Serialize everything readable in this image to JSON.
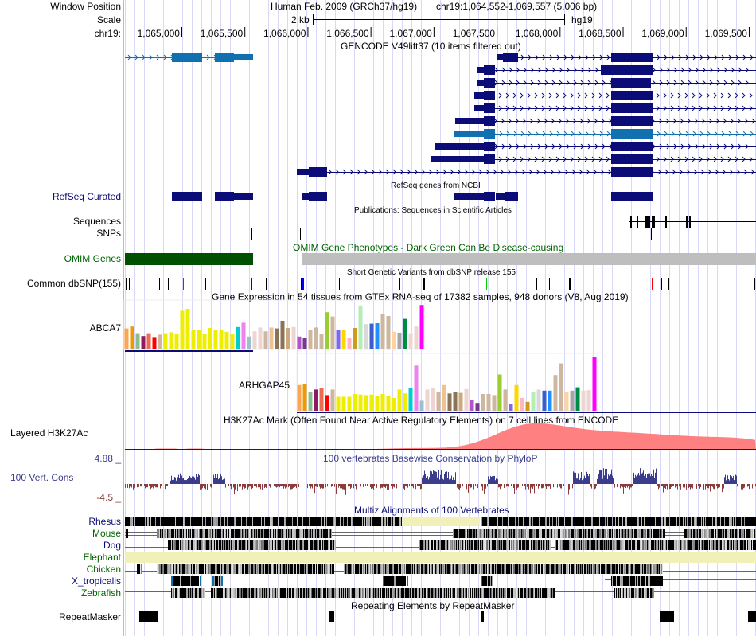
{
  "header": {
    "window_position_label": "Window Position",
    "scale_label": "Scale",
    "chrom_label": "chr19:",
    "assembly": "Human Feb. 2009 (GRCh37/hg19)",
    "position": "chr19:1,064,552-1,069,557 (5,006 bp)",
    "scale_value": "2 kb",
    "scale_db": "hg19",
    "ruler_ticks": [
      "1,065,000",
      "1,065,500",
      "1,066,000",
      "1,066,500",
      "1,067,000",
      "1,067,500",
      "1,068,000",
      "1,068,500",
      "1,069,000",
      "1,069,500"
    ]
  },
  "view": {
    "start": 1064552,
    "end": 1069557
  },
  "colors": {
    "gencode_navy": "#0c0c78",
    "gencode_blue": "#1070b0",
    "omim_green": "#005000",
    "omim_grey": "#bebebe",
    "cons_pos": "#3c3c8c",
    "cons_neg": "#8c3c3c",
    "h3k27ac": "#ff8080",
    "elephant": "#f0f0b8",
    "grid": "#d8d8f8",
    "gutter": "#f4a5a5"
  },
  "tracks": {
    "gencode": {
      "title": "GENCODE V49lift37 (10 items filtered out)",
      "items": [
        {
          "name": "ABCA7",
          "color": "blue",
          "row": 0
        },
        {
          "name": "ARHGAP45",
          "color": "navy",
          "row": 0
        },
        {
          "name": "ARHGAP45",
          "color": "navy",
          "row": 1
        },
        {
          "name": "ARHGAP45",
          "color": "navy",
          "row": 2
        },
        {
          "name": "ARHGAP45",
          "color": "navy",
          "row": 3
        },
        {
          "name": "ARHGAP45",
          "color": "navy",
          "row": 4
        },
        {
          "name": "ARHGAP45",
          "color": "navy",
          "row": 5
        },
        {
          "name": "ARHGAP45",
          "color": "blue",
          "row": 6
        },
        {
          "name": "ARHGAP45",
          "color": "navy",
          "row": 7
        },
        {
          "name": "ARHGAP45",
          "color": "navy",
          "row": 8
        },
        {
          "name": "ARHGAP45",
          "color": "navy",
          "row": 9
        }
      ]
    },
    "refseq": {
      "label": "RefSeq Curated",
      "title": "RefSeq genes from NCBI"
    },
    "publications": {
      "title": "Publications: Sequences in Scientific Articles",
      "label_sequences": "Sequences",
      "label_snps": "SNPs"
    },
    "omim": {
      "label": "OMIM Genes",
      "title": "OMIM Gene Phenotypes - Dark Green Can Be Disease-causing"
    },
    "dbsnp": {
      "label": "Common dbSNP(155)",
      "title": "Short Genetic Variants from dbSNP release 155"
    },
    "gtex": {
      "title": "Gene Expression in 54 tissues from GTEx RNA-seq of 17382 samples, 948 donors (V8, Aug 2019)",
      "genes": [
        {
          "name": "ABCA7",
          "values": [
            0.44,
            0.48,
            0.34,
            0.28,
            0.34,
            0.26,
            0.31,
            0.34,
            0.36,
            0.32,
            0.81,
            0.85,
            0.4,
            0.41,
            0.32,
            0.45,
            0.4,
            0.41,
            0.37,
            0.33,
            0.47,
            0.56,
            0.27,
            0.38,
            0.46,
            0.38,
            0.46,
            0.44,
            0.6,
            0.45,
            0.47,
            0.27,
            0.24,
            0.41,
            0.46,
            0.32,
            0.78,
            0.69,
            0.4,
            0.4,
            0.25,
            0.45,
            0.92,
            0.53,
            0.54,
            0.55,
            0.75,
            0.7,
            0.37,
            0.35,
            0.64,
            0.34,
            0.48,
            0.93
          ]
        },
        {
          "name": "ARHGAP45",
          "values": [
            0.46,
            0.48,
            0.34,
            0.38,
            0.41,
            0.28,
            0.38,
            0.25,
            0.25,
            0.25,
            0.3,
            0.29,
            0.28,
            0.29,
            0.27,
            0.3,
            0.27,
            0.23,
            0.38,
            0.31,
            0.4,
            0.81,
            0.18,
            0.38,
            0.41,
            0.34,
            0.46,
            0.31,
            0.33,
            0.32,
            0.39,
            0.2,
            0.14,
            0.3,
            0.3,
            0.28,
            0.65,
            0.38,
            0.12,
            0.46,
            0.23,
            0.16,
            0.34,
            0.38,
            0.36,
            0.36,
            0.64,
            0.85,
            0.34,
            0.36,
            0.42,
            0.36,
            0.37,
            0.97
          ]
        }
      ],
      "tissue_colors": [
        "#ffa54f",
        "#ee9a00",
        "#8fbc8f",
        "#8b1c62",
        "#ee6a50",
        "#ff0000",
        "#cdb79e",
        "#eeee00",
        "#eeee00",
        "#eeee00",
        "#eeee00",
        "#eeee00",
        "#eeee00",
        "#eeee00",
        "#eeee00",
        "#eeee00",
        "#eeee00",
        "#eeee00",
        "#eeee00",
        "#eeee00",
        "#00cdcd",
        "#ee82ee",
        "#9ac0cd",
        "#eed5d2",
        "#eed5d2",
        "#cdb79e",
        "#f0c28c",
        "#8b7355",
        "#8b7355",
        "#cdaa7d",
        "#eed5d2",
        "#b452cd",
        "#7a378b",
        "#cdb79e",
        "#cdb79e",
        "#cdb79e",
        "#9acd32",
        "#cdb79e",
        "#7b68ee",
        "#ffd700",
        "#ffb6c1",
        "#cd9b1d",
        "#b4eeb4",
        "#d9d9d9",
        "#3a5fcd",
        "#1e90ff",
        "#cdb79e",
        "#cdb79e",
        "#ffd39b",
        "#a6a6a6",
        "#008b45",
        "#eed5d2",
        "#eed5d2",
        "#ff00ff"
      ]
    },
    "h3k27ac": {
      "label": "Layered H3K27Ac",
      "title": "H3K27Ac Mark (Often Found Near Active Regulatory Elements) on 7 cell lines from ENCODE"
    },
    "conservation": {
      "label": "100 Vert. Cons",
      "title": "100 vertebrates Basewise Conservation by PhyloP",
      "max_label": "4.88 _",
      "min_label": "-4.5 _"
    },
    "multiz": {
      "title": "Multiz Alignments of 100 Vertebrates",
      "species": [
        {
          "name": "Rhesus",
          "color": "#0c0c78"
        },
        {
          "name": "Mouse",
          "color": "#006400"
        },
        {
          "name": "Dog",
          "color": "#0c0c78"
        },
        {
          "name": "Elephant",
          "color": "#006400"
        },
        {
          "name": "Chicken",
          "color": "#006400"
        },
        {
          "name": "X_tropicalis",
          "color": "#0c0c78"
        },
        {
          "name": "Zebrafish",
          "color": "#006400"
        }
      ]
    },
    "repeatmasker": {
      "label": "RepeatMasker",
      "title": "Repeating Elements by RepeatMasker"
    }
  }
}
